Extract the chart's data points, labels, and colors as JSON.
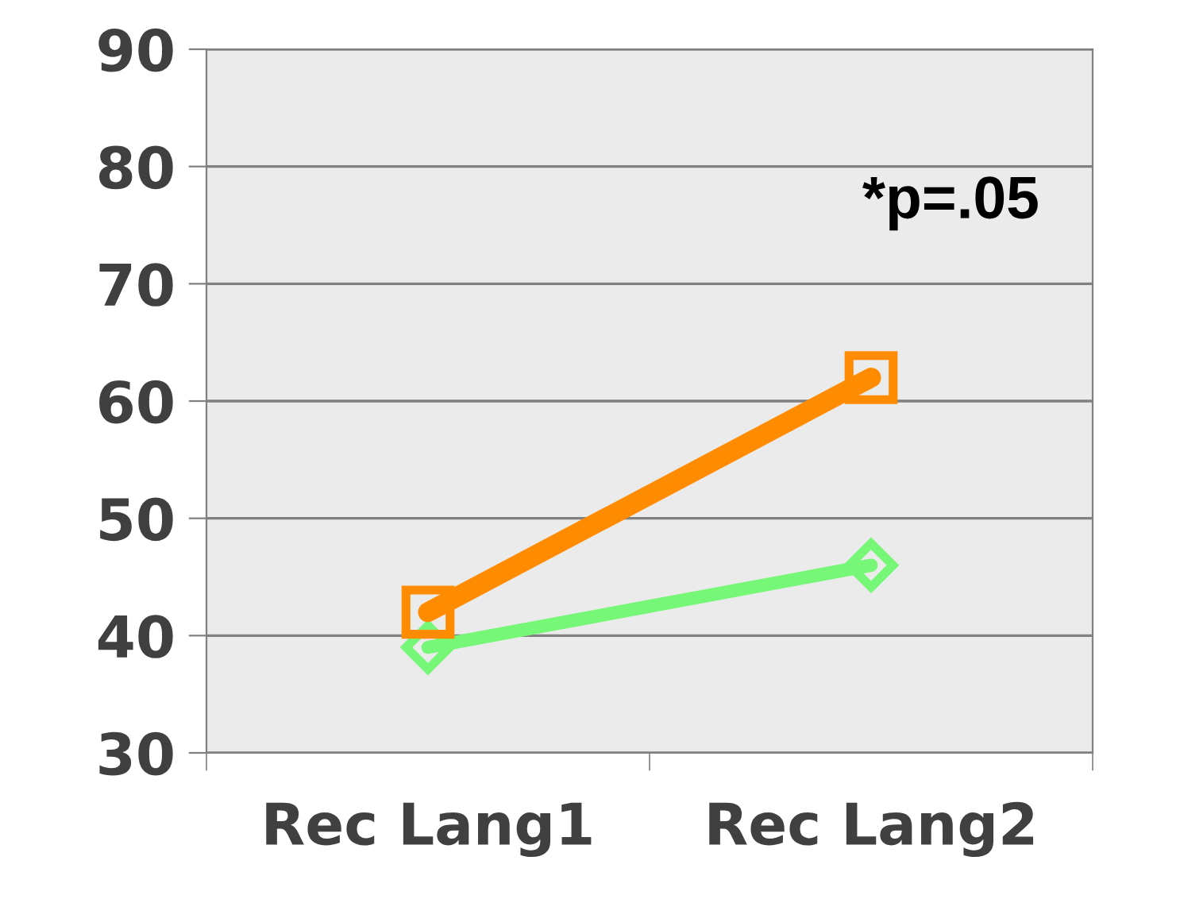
{
  "chart_data": {
    "type": "line",
    "categories": [
      "Rec Lang1",
      "Rec Lang2"
    ],
    "series": [
      {
        "color": "#77f777",
        "values": [
          39,
          46
        ],
        "marker": "diamond"
      },
      {
        "color": "#ff8c00",
        "values": [
          42,
          62
        ],
        "marker": "square"
      }
    ],
    "ylim": [
      30,
      90
    ],
    "yticks": [
      30,
      40,
      50,
      60,
      70,
      80,
      90
    ],
    "grid": "y",
    "legend": false,
    "annotations": [
      "*p=.05"
    ]
  }
}
